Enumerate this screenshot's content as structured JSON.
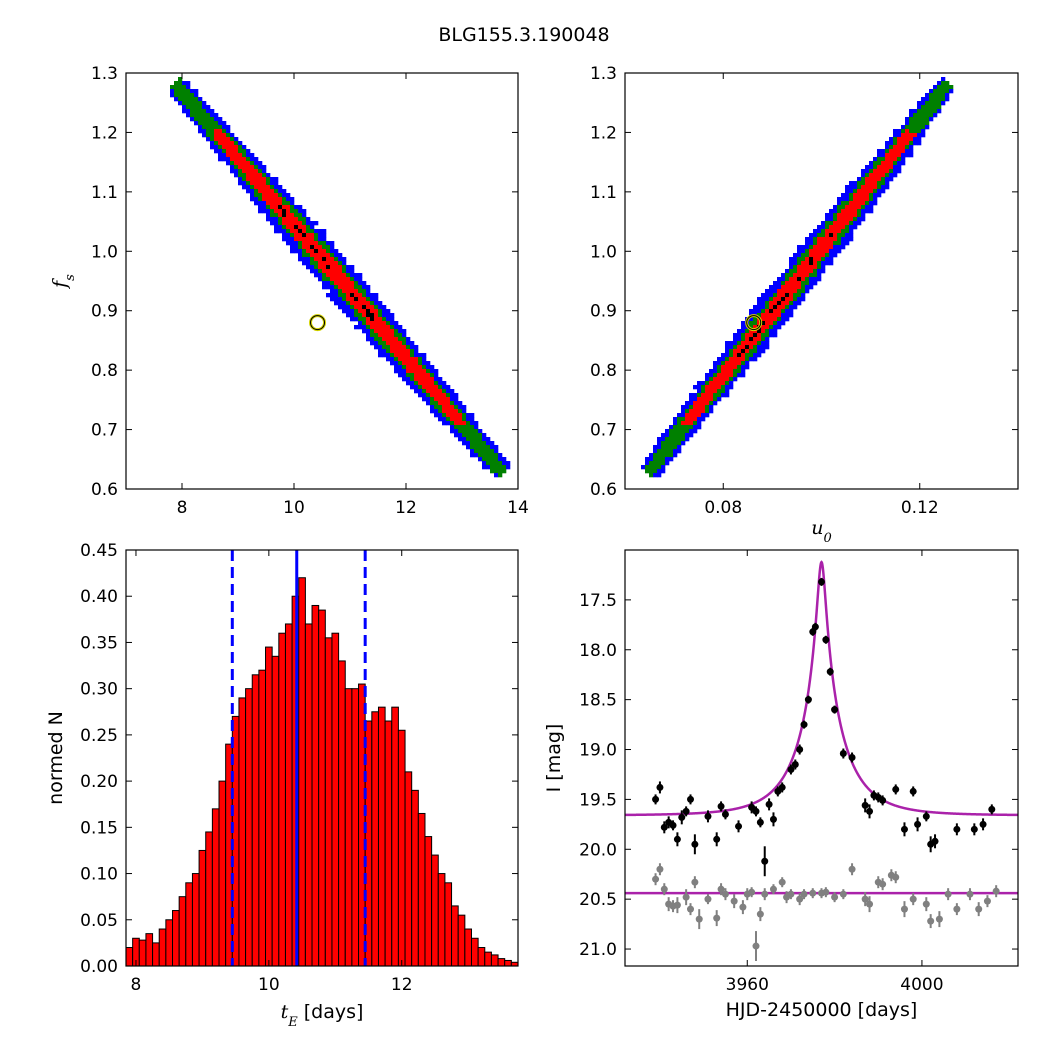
{
  "title": "BLG155.3.190048",
  "chart_data": [
    {
      "id": "panel-tE-fs",
      "type": "heatmap",
      "xlabel": "",
      "ylabel_math": "f",
      "ylabel_sub": "s",
      "xlim": [
        7.0,
        14.0
      ],
      "ylim": [
        0.6,
        1.3
      ],
      "xticks": [
        8,
        10,
        12,
        14
      ],
      "yticks": [
        0.6,
        0.7,
        0.8,
        0.9,
        1.0,
        1.1,
        1.2,
        1.3
      ],
      "xtick_labels": [
        "8",
        "10",
        "12",
        "14"
      ],
      "ytick_labels": [
        "0.6",
        "0.7",
        "0.8",
        "0.9",
        "1.0",
        "1.1",
        "1.2",
        "1.3"
      ],
      "band": {
        "start": [
          7.9,
          1.28
        ],
        "end": [
          13.7,
          0.63
        ],
        "widths": [
          0.16,
          0.1,
          0.055,
          0.015
        ]
      },
      "best_fit": [
        10.42,
        0.88
      ],
      "layer_colors": [
        "#0000ff",
        "#008000",
        "#ff0000",
        "#000000"
      ],
      "marker_color": "#d4d400"
    },
    {
      "id": "panel-u0-fs",
      "type": "heatmap",
      "xlabel_math": "u",
      "xlabel_sub": "0",
      "ylabel": "",
      "xlim": [
        0.06,
        0.14
      ],
      "ylim": [
        0.6,
        1.3
      ],
      "xticks": [
        0.08,
        0.12
      ],
      "yticks": [
        0.6,
        0.7,
        0.8,
        0.9,
        1.0,
        1.1,
        1.2,
        1.3
      ],
      "xtick_labels": [
        "0.08",
        "0.12"
      ],
      "ytick_labels": [
        "0.6",
        "0.7",
        "0.8",
        "0.9",
        "1.0",
        "1.1",
        "1.2",
        "1.3"
      ],
      "band": {
        "start": [
          0.065,
          0.63
        ],
        "end": [
          0.1255,
          1.28
        ],
        "widths": [
          0.16,
          0.1,
          0.055,
          0.015
        ]
      },
      "best_fit": [
        0.0862,
        0.88
      ],
      "layer_colors": [
        "#0000ff",
        "#008000",
        "#ff0000",
        "#000000"
      ],
      "marker_color": "#d4d400"
    },
    {
      "id": "panel-tE-hist",
      "type": "bar",
      "xlabel_math": "t",
      "xlabel_sub": "E",
      "xlabel_text": " [days]",
      "ylabel": "normed N",
      "xlim": [
        7.85,
        13.75
      ],
      "ylim": [
        0.0,
        0.45
      ],
      "xticks": [
        8,
        10,
        12
      ],
      "yticks": [
        0.0,
        0.05,
        0.1,
        0.15,
        0.2,
        0.25,
        0.3,
        0.35,
        0.4,
        0.45
      ],
      "xtick_labels": [
        "8",
        "10",
        "12"
      ],
      "ytick_labels": [
        "0.00",
        "0.05",
        "0.10",
        "0.15",
        "0.20",
        "0.25",
        "0.30",
        "0.35",
        "0.40",
        "0.45"
      ],
      "bin_start": 7.85,
      "bin_width": 0.1,
      "values": [
        0.02,
        0.03,
        0.028,
        0.035,
        0.025,
        0.04,
        0.05,
        0.06,
        0.075,
        0.09,
        0.1,
        0.125,
        0.145,
        0.17,
        0.2,
        0.24,
        0.27,
        0.29,
        0.3,
        0.315,
        0.32,
        0.345,
        0.335,
        0.36,
        0.37,
        0.4,
        0.42,
        0.37,
        0.39,
        0.385,
        0.355,
        0.36,
        0.33,
        0.3,
        0.3,
        0.305,
        0.265,
        0.275,
        0.28,
        0.265,
        0.28,
        0.255,
        0.21,
        0.19,
        0.165,
        0.14,
        0.12,
        0.1,
        0.09,
        0.065,
        0.055,
        0.04,
        0.03,
        0.02,
        0.015,
        0.012,
        0.008,
        0.006,
        0.004
      ],
      "bar_color": "#ff0000",
      "median": 10.42,
      "bounds": [
        9.45,
        11.45
      ],
      "line_color": "#0000ff"
    },
    {
      "id": "panel-lightcurve",
      "type": "scatter",
      "xlabel": "HJD-2450000 [days]",
      "ylabel": "I [mag]",
      "xlim": [
        3932,
        4022
      ],
      "ylim": [
        21.17,
        17.0
      ],
      "y_inverted": true,
      "xticks": [
        3960,
        4000
      ],
      "yticks": [
        17.5,
        18.0,
        18.5,
        19.0,
        19.5,
        20.0,
        20.5,
        21.0
      ],
      "xtick_labels": [
        "3960",
        "4000"
      ],
      "ytick_labels": [
        "17.5",
        "18.0",
        "18.5",
        "19.0",
        "19.5",
        "20.0",
        "20.5",
        "21.0"
      ],
      "model": {
        "t0": 3977.0,
        "tE": 10.4,
        "u0": 0.0862,
        "fs": 0.88,
        "I_base": 19.66
      },
      "baseline_model": 20.44,
      "model_color": "#aa22aa",
      "series": [
        {
          "name": "",
          "color": "#000000",
          "points": [
            [
              3939,
              19.5,
              0.05
            ],
            [
              3940,
              19.38,
              0.06
            ],
            [
              3941,
              19.78,
              0.06
            ],
            [
              3942,
              19.73,
              0.06
            ],
            [
              3943,
              19.76,
              0.05
            ],
            [
              3944,
              19.9,
              0.07
            ],
            [
              3945,
              19.68,
              0.07
            ],
            [
              3946,
              19.62,
              0.05
            ],
            [
              3947,
              19.5,
              0.05
            ],
            [
              3948,
              19.95,
              0.1
            ],
            [
              3951,
              19.67,
              0.06
            ],
            [
              3953,
              19.9,
              0.07
            ],
            [
              3954,
              19.57,
              0.05
            ],
            [
              3955,
              19.65,
              0.05
            ],
            [
              3958,
              19.77,
              0.06
            ],
            [
              3961,
              19.58,
              0.06
            ],
            [
              3962,
              19.62,
              0.05
            ],
            [
              3963,
              19.73,
              0.05
            ],
            [
              3964,
              20.12,
              0.15
            ],
            [
              3965,
              19.55,
              0.06
            ],
            [
              3966,
              19.7,
              0.07
            ],
            [
              3967,
              19.42,
              0.05
            ],
            [
              3968,
              19.38,
              0.05
            ],
            [
              3970,
              19.2,
              0.05
            ],
            [
              3971,
              19.15,
              0.05
            ],
            [
              3972,
              19.0,
              0.05
            ],
            [
              3973,
              18.75,
              0.04
            ],
            [
              3974,
              18.5,
              0.04
            ],
            [
              3975,
              17.82,
              0.04
            ],
            [
              3975.6,
              17.77,
              0.04
            ],
            [
              3977,
              17.32,
              0.04
            ],
            [
              3978,
              17.9,
              0.04
            ],
            [
              3979,
              18.22,
              0.04
            ],
            [
              3980,
              18.6,
              0.04
            ],
            [
              3982,
              19.04,
              0.05
            ],
            [
              3984,
              19.08,
              0.05
            ],
            [
              3987,
              19.56,
              0.07
            ],
            [
              3988,
              19.62,
              0.07
            ],
            [
              3989,
              19.46,
              0.05
            ],
            [
              3990,
              19.48,
              0.05
            ],
            [
              3991,
              19.51,
              0.05
            ],
            [
              3994,
              19.4,
              0.05
            ],
            [
              3996,
              19.8,
              0.07
            ],
            [
              3998,
              19.42,
              0.05
            ],
            [
              3999,
              19.75,
              0.07
            ],
            [
              4001,
              19.67,
              0.05
            ],
            [
              4002,
              19.95,
              0.08
            ],
            [
              4003,
              19.92,
              0.07
            ],
            [
              4008,
              19.8,
              0.06
            ],
            [
              4012,
              19.8,
              0.06
            ],
            [
              4014,
              19.75,
              0.06
            ],
            [
              4016,
              19.6,
              0.05
            ]
          ]
        },
        {
          "name": "",
          "color": "#808080",
          "points": [
            [
              3939,
              20.3,
              0.06
            ],
            [
              3940,
              20.2,
              0.06
            ],
            [
              3941,
              20.4,
              0.06
            ],
            [
              3942,
              20.55,
              0.07
            ],
            [
              3943,
              20.57,
              0.06
            ],
            [
              3944,
              20.56,
              0.08
            ],
            [
              3946,
              20.48,
              0.08
            ],
            [
              3947,
              20.6,
              0.06
            ],
            [
              3948,
              20.33,
              0.06
            ],
            [
              3949,
              20.7,
              0.1
            ],
            [
              3951,
              20.5,
              0.05
            ],
            [
              3953,
              20.69,
              0.08
            ],
            [
              3954,
              20.4,
              0.06
            ],
            [
              3955,
              20.45,
              0.06
            ],
            [
              3957,
              20.52,
              0.07
            ],
            [
              3959,
              20.58,
              0.07
            ],
            [
              3960,
              20.45,
              0.06
            ],
            [
              3961,
              20.43,
              0.05
            ],
            [
              3962,
              20.97,
              0.15
            ],
            [
              3963,
              20.65,
              0.07
            ],
            [
              3964,
              20.45,
              0.06
            ],
            [
              3966,
              20.4,
              0.05
            ],
            [
              3968,
              20.33,
              0.05
            ],
            [
              3969,
              20.48,
              0.06
            ],
            [
              3970,
              20.45,
              0.05
            ],
            [
              3972,
              20.5,
              0.06
            ],
            [
              3973,
              20.45,
              0.05
            ],
            [
              3975,
              20.44,
              0.05
            ],
            [
              3977,
              20.44,
              0.05
            ],
            [
              3978,
              20.43,
              0.05
            ],
            [
              3980,
              20.48,
              0.05
            ],
            [
              3982,
              20.45,
              0.05
            ],
            [
              3984,
              20.2,
              0.06
            ],
            [
              3987,
              20.5,
              0.07
            ],
            [
              3988,
              20.55,
              0.08
            ],
            [
              3990,
              20.33,
              0.06
            ],
            [
              3991,
              20.35,
              0.06
            ],
            [
              3993,
              20.26,
              0.06
            ],
            [
              3994,
              20.28,
              0.06
            ],
            [
              3996,
              20.6,
              0.08
            ],
            [
              3998,
              20.5,
              0.06
            ],
            [
              4001,
              20.55,
              0.07
            ],
            [
              4002,
              20.72,
              0.07
            ],
            [
              4004,
              20.7,
              0.08
            ],
            [
              4006,
              20.45,
              0.06
            ],
            [
              4008,
              20.6,
              0.06
            ],
            [
              4011,
              20.45,
              0.06
            ],
            [
              4013,
              20.6,
              0.07
            ],
            [
              4015,
              20.52,
              0.06
            ],
            [
              4017,
              20.42,
              0.06
            ]
          ]
        }
      ]
    }
  ]
}
